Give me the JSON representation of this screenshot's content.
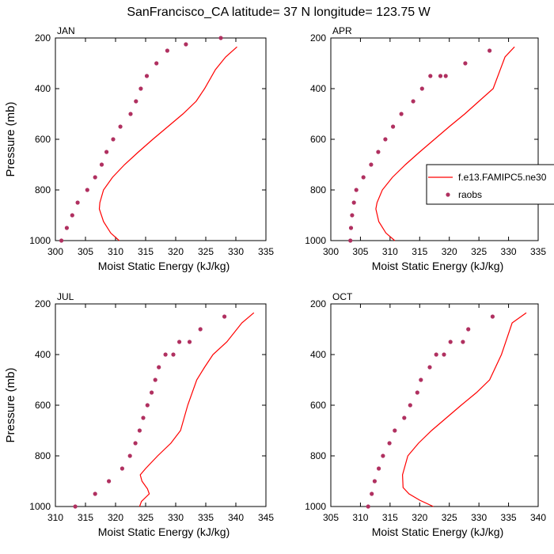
{
  "title": "SanFrancisco_CA  latitude= 37 N longitude= 123.75 W",
  "colors": {
    "model": "#ff0000",
    "obs": "#b03060",
    "axis": "#000000"
  },
  "legend": {
    "model_label": "f.e13.FAMIPC5.ne30",
    "obs_label": "raobs",
    "placement": "right of top-right panel"
  },
  "chart_data": [
    {
      "type": "line",
      "panel": "JAN",
      "xlabel": "Moist Static Energy (kJ/kg)",
      "ylabel": "Pressure (mb)",
      "xlim": [
        300,
        335
      ],
      "xticks": [
        300,
        305,
        310,
        315,
        320,
        325,
        330,
        335
      ],
      "ylim": [
        1000,
        200
      ],
      "yticks": [
        200,
        400,
        600,
        800,
        1000
      ],
      "model": {
        "x": [
          310.6,
          309.2,
          308.0,
          307.3,
          307.4,
          308.0,
          309.5,
          311.5,
          313.8,
          316.2,
          318.7,
          321.2,
          323.4,
          324.8,
          326.6,
          328.3,
          330.2
        ],
        "y": [
          1000,
          970,
          925,
          875,
          850,
          800,
          750,
          700,
          650,
          600,
          550,
          500,
          450,
          400,
          325,
          275,
          235
        ]
      },
      "obs": {
        "x": [
          301.0,
          301.9,
          302.8,
          303.7,
          305.3,
          306.6,
          307.7,
          308.5,
          309.6,
          310.8,
          312.5,
          313.4,
          314.2,
          315.2,
          316.8,
          318.6,
          321.7,
          327.5
        ],
        "y": [
          1000,
          950,
          900,
          850,
          800,
          750,
          700,
          650,
          600,
          550,
          500,
          450,
          400,
          350,
          300,
          250,
          225,
          200
        ]
      }
    },
    {
      "type": "line",
      "panel": "APR",
      "xlabel": "Moist Static Energy (kJ/kg)",
      "ylabel": "",
      "xlim": [
        300,
        335
      ],
      "xticks": [
        300,
        305,
        310,
        315,
        320,
        325,
        330,
        335
      ],
      "ylim": [
        1000,
        200
      ],
      "yticks": [
        200,
        400,
        600,
        800,
        1000
      ],
      "model": {
        "x": [
          310.8,
          309.3,
          308.1,
          307.6,
          307.8,
          308.7,
          310.4,
          312.6,
          315.0,
          317.5,
          320.0,
          322.6,
          325.0,
          327.4,
          329.4,
          331.0
        ],
        "y": [
          1000,
          970,
          925,
          875,
          850,
          800,
          750,
          700,
          650,
          600,
          550,
          500,
          450,
          400,
          275,
          235
        ]
      },
      "obs": {
        "x": [
          303.3,
          303.4,
          303.6,
          303.9,
          304.3,
          305.5,
          306.8,
          308.0,
          309.2,
          310.5,
          311.9,
          313.9,
          315.4,
          316.8,
          318.5,
          319.4,
          322.7,
          326.8
        ],
        "y": [
          1000,
          950,
          900,
          850,
          800,
          750,
          700,
          650,
          600,
          550,
          500,
          450,
          400,
          350,
          350,
          350,
          300,
          250
        ]
      }
    },
    {
      "type": "line",
      "panel": "JUL",
      "xlabel": "Moist Static Energy (kJ/kg)",
      "ylabel": "Pressure (mb)",
      "xlim": [
        310,
        345
      ],
      "xticks": [
        310,
        315,
        320,
        325,
        330,
        335,
        340,
        345
      ],
      "ylim": [
        1000,
        200
      ],
      "yticks": [
        200,
        400,
        600,
        800,
        1000
      ],
      "model": {
        "x": [
          324.0,
          324.3,
          325.6,
          325.3,
          324.4,
          324.1,
          325.0,
          327.0,
          329.2,
          330.8,
          332.0,
          333.5,
          334.8,
          336.2,
          338.5,
          341.0,
          343.0
        ],
        "y": [
          1000,
          980,
          950,
          930,
          900,
          875,
          850,
          800,
          750,
          700,
          600,
          500,
          450,
          400,
          350,
          275,
          235
        ]
      },
      "obs": {
        "x": [
          313.3,
          316.6,
          318.9,
          321.1,
          322.4,
          323.3,
          324.0,
          324.6,
          325.3,
          326.0,
          326.6,
          327.2,
          328.3,
          329.6,
          330.6,
          332.3,
          334.1,
          338.1
        ],
        "y": [
          1000,
          950,
          900,
          850,
          800,
          750,
          700,
          650,
          600,
          550,
          500,
          450,
          400,
          400,
          350,
          350,
          300,
          250
        ]
      }
    },
    {
      "type": "line",
      "panel": "OCT",
      "xlabel": "Moist Static Energy (kJ/kg)",
      "ylabel": "",
      "xlim": [
        305,
        340
      ],
      "xticks": [
        305,
        310,
        315,
        320,
        325,
        330,
        335,
        340
      ],
      "ylim": [
        1000,
        200
      ],
      "yticks": [
        200,
        400,
        600,
        800,
        1000
      ],
      "model": {
        "x": [
          322.3,
          320.0,
          318.2,
          317.2,
          317.1,
          318.0,
          319.8,
          322.0,
          324.5,
          327.0,
          329.6,
          331.8,
          333.8,
          335.6,
          338.0
        ],
        "y": [
          1000,
          975,
          950,
          925,
          875,
          800,
          750,
          700,
          650,
          600,
          550,
          500,
          400,
          275,
          235
        ]
      },
      "obs": {
        "x": [
          311.3,
          311.9,
          312.4,
          313.1,
          313.8,
          314.9,
          315.8,
          317.4,
          318.4,
          319.6,
          320.2,
          321.7,
          322.8,
          324.1,
          325.2,
          327.3,
          328.2,
          332.3
        ],
        "y": [
          1000,
          950,
          900,
          850,
          800,
          750,
          700,
          650,
          600,
          550,
          500,
          450,
          400,
          400,
          350,
          350,
          300,
          250
        ]
      }
    }
  ]
}
